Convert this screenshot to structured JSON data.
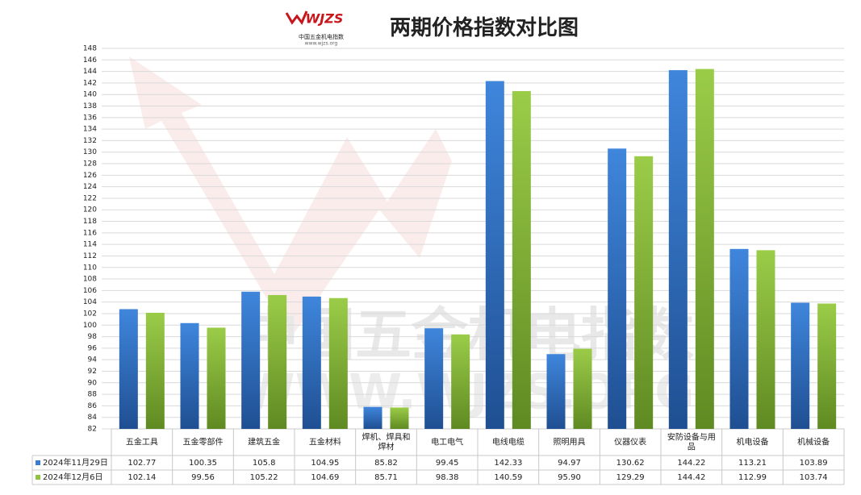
{
  "chart_data": {
    "type": "bar",
    "title": "两期价格指数对比图",
    "logo": {
      "mark": "WJZS",
      "name": "中国五金机电指数",
      "url": "www.wjzs.org"
    },
    "watermark": [
      "中国五金机电指数",
      "WWW.WJZS.ORG"
    ],
    "categories": [
      "五金工具",
      "五金零部件",
      "建筑五金",
      "五金材料",
      "焊机、焊具和焊材",
      "电工电气",
      "电线电缆",
      "照明用具",
      "仪器仪表",
      "安防设备与用品",
      "机电设备",
      "机械设备"
    ],
    "series": [
      {
        "name": "2024年11月29日",
        "color": "#3b7bd0",
        "values": [
          102.77,
          100.35,
          105.8,
          104.95,
          85.82,
          99.45,
          142.33,
          94.97,
          130.62,
          144.22,
          113.21,
          103.89
        ]
      },
      {
        "name": "2024年12月6日",
        "color": "#92c143",
        "values": [
          102.14,
          99.56,
          105.22,
          104.69,
          85.71,
          98.38,
          140.59,
          95.9,
          129.29,
          144.42,
          112.99,
          103.74
        ],
        "value_labels": [
          "102.14",
          "99.56",
          "105.22",
          "104.69",
          "85.71",
          "98.38",
          "140.59",
          "95.90",
          "129.29",
          "144.42",
          "112.99",
          "103.74"
        ]
      }
    ],
    "ylim": [
      82,
      148
    ],
    "yticks": [
      82,
      84,
      86,
      88,
      90,
      92,
      94,
      96,
      98,
      100,
      102,
      104,
      106,
      108,
      110,
      112,
      114,
      116,
      118,
      120,
      122,
      124,
      126,
      128,
      130,
      132,
      134,
      136,
      138,
      140,
      142,
      144,
      146,
      148
    ],
    "grid": true,
    "data_table": true
  }
}
